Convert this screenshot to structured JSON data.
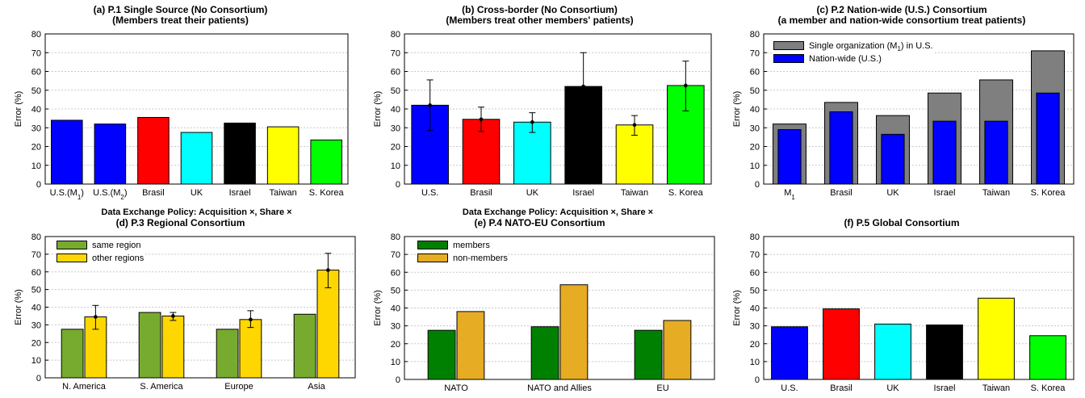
{
  "chart_data": [
    {
      "type": "bar",
      "title": "(a) P.1 Single Source (No Consortium)",
      "subtitle": "(Members treat their patients)",
      "xlabel": "Data Exchange Policy: Acquisition ×, Share ×",
      "ylabel": "Error (%)",
      "ylim": [
        0,
        80
      ],
      "yticks": [
        0,
        10,
        20,
        30,
        40,
        50,
        60,
        70,
        80
      ],
      "grid": "horizontal-dotted",
      "categories": [
        "U.S.(M1)",
        "U.S.(M2)",
        "Brasil",
        "UK",
        "Israel",
        "Taiwan",
        "S. Korea"
      ],
      "values": [
        34,
        32,
        35.5,
        27.5,
        32.5,
        30.5,
        23.5
      ],
      "colors": [
        "#0000ff",
        "#0000ff",
        "#ff0000",
        "#00ffff",
        "#000000",
        "#ffff00",
        "#00ff00"
      ]
    },
    {
      "type": "bar",
      "title": "(b) Cross-border (No Consortium)",
      "subtitle": "(Members treat other members' patients)",
      "xlabel": "Data Exchange Policy: Acquisition ×, Share ×",
      "ylabel": "Error (%)",
      "ylim": [
        0,
        80
      ],
      "yticks": [
        0,
        10,
        20,
        30,
        40,
        50,
        60,
        70,
        80
      ],
      "grid": "horizontal-dotted",
      "categories": [
        "U.S.",
        "Brasil",
        "UK",
        "Israel",
        "Taiwan",
        "S. Korea"
      ],
      "values": [
        42,
        34.5,
        33,
        52,
        31.5,
        52.5
      ],
      "error_low": [
        28.5,
        28,
        27.5,
        52,
        26,
        39
      ],
      "error_high": [
        55.5,
        41,
        38,
        70,
        36.5,
        65.5
      ],
      "colors": [
        "#0000ff",
        "#ff0000",
        "#00ffff",
        "#000000",
        "#ffff00",
        "#00ff00"
      ]
    },
    {
      "type": "bar",
      "title": "(c) P.2 Nation-wide (U.S.) Consortium",
      "subtitle": "(a member and nation-wide consortium treat patients)",
      "xlabel": "",
      "ylabel": "Error (%)",
      "ylim": [
        0,
        80
      ],
      "yticks": [
        0,
        10,
        20,
        30,
        40,
        50,
        60,
        70,
        80
      ],
      "grid": "horizontal-dotted",
      "legend_position": "top-left",
      "categories": [
        "M1",
        "Brasil",
        "UK",
        "Israel",
        "Taiwan",
        "S. Korea"
      ],
      "series": [
        {
          "name": "Single organization (M1) in U.S.",
          "color": "#7f7f7f",
          "values": [
            32,
            43.5,
            36.5,
            48.5,
            55.5,
            71
          ]
        },
        {
          "name": "Nation-wide (U.S.)",
          "color": "#0000ff",
          "values": [
            29,
            38.5,
            26.5,
            33.5,
            33.5,
            48.5
          ]
        }
      ]
    },
    {
      "type": "bar",
      "title": "(d) P.3 Regional Consortium",
      "subtitle": "",
      "xlabel": "",
      "ylabel": "Error (%)",
      "ylim": [
        0,
        80
      ],
      "yticks": [
        0,
        10,
        20,
        30,
        40,
        50,
        60,
        70,
        80
      ],
      "grid": "horizontal-dotted",
      "legend_position": "top-left",
      "categories": [
        "N. America",
        "S. America",
        "Europe",
        "Asia"
      ],
      "series": [
        {
          "name": "same region",
          "color": "#77ab2f",
          "values": [
            27.5,
            37,
            27.5,
            36
          ]
        },
        {
          "name": "other regions",
          "color": "#ffd700",
          "values": [
            34.5,
            35,
            33,
            61
          ],
          "error_low": [
            27.5,
            32.5,
            28.5,
            51
          ],
          "error_high": [
            41,
            37,
            38,
            70.5
          ]
        }
      ]
    },
    {
      "type": "bar",
      "title": "(e) P.4 NATO-EU Consortium",
      "subtitle": "",
      "xlabel": "",
      "ylabel": "Error (%)",
      "ylim": [
        0,
        80
      ],
      "yticks": [
        0,
        10,
        20,
        30,
        40,
        50,
        60,
        70,
        80
      ],
      "grid": "horizontal-dotted",
      "legend_position": "top-left",
      "categories": [
        "NATO",
        "NATO and Allies",
        "EU"
      ],
      "series": [
        {
          "name": "members",
          "color": "#008000",
          "values": [
            27.5,
            29.5,
            27.5
          ]
        },
        {
          "name": "non-members",
          "color": "#e6ac23",
          "values": [
            38,
            53,
            33
          ]
        }
      ]
    },
    {
      "type": "bar",
      "title": "(f) P.5 Global Consortium",
      "subtitle": "",
      "xlabel": "",
      "ylabel": "Error (%)",
      "ylim": [
        0,
        80
      ],
      "yticks": [
        0,
        10,
        20,
        30,
        40,
        50,
        60,
        70,
        80
      ],
      "grid": "horizontal-dotted",
      "categories": [
        "U.S.",
        "Brasil",
        "UK",
        "Israel",
        "Taiwan",
        "S. Korea"
      ],
      "values": [
        29.5,
        39.5,
        31,
        30.5,
        45.5,
        24.5
      ],
      "colors": [
        "#0000ff",
        "#ff0000",
        "#00ffff",
        "#000000",
        "#ffff00",
        "#00ff00"
      ]
    }
  ]
}
